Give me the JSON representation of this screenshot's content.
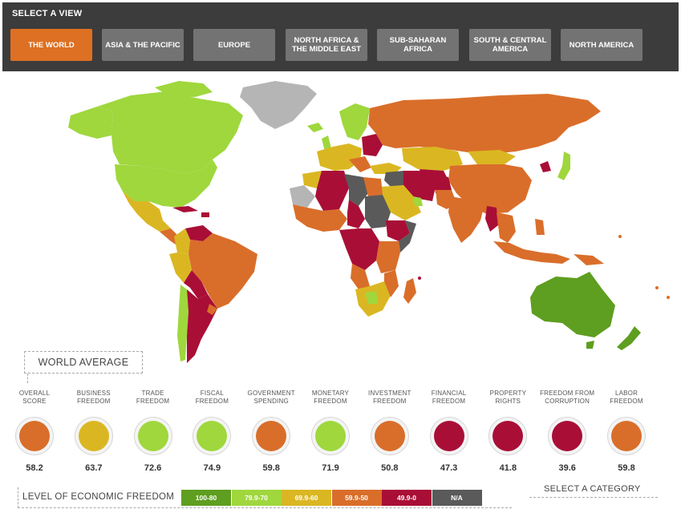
{
  "header": {
    "title": "SELECT A VIEW",
    "tabs": [
      {
        "label": "THE WORLD",
        "active": true
      },
      {
        "label": "ASIA & THE PACIFIC",
        "active": false
      },
      {
        "label": "EUROPE",
        "active": false
      },
      {
        "label": "NORTH AFRICA &\nTHE MIDDLE EAST",
        "active": false
      },
      {
        "label": "SUB-SAHARAN\nAFRICA",
        "active": false
      },
      {
        "label": "SOUTH & CENTRAL\nAMERICA",
        "active": false
      },
      {
        "label": "NORTH AMERICA",
        "active": false
      }
    ]
  },
  "colors": {
    "free": "#5e9e20",
    "mostly_free": "#9fd73d",
    "moderately_free": "#dab722",
    "mostly_unfree": "#d96e2a",
    "repressed": "#a90e36",
    "na": "#5a5a5a",
    "no_data": "#b5b5b5",
    "accent": "#dd7022"
  },
  "world_average": {
    "title": "WORLD AVERAGE",
    "categories": [
      {
        "label": "OVERALL\nSCORE",
        "score": "58.2",
        "color": "#d96e2a"
      },
      {
        "label": "BUSINESS\nFREEDOM",
        "score": "63.7",
        "color": "#dab722"
      },
      {
        "label": "TRADE\nFREEDOM",
        "score": "72.6",
        "color": "#9fd73d"
      },
      {
        "label": "FISCAL\nFREEDOM",
        "score": "74.9",
        "color": "#9fd73d"
      },
      {
        "label": "GOVERNMENT\nSPENDING",
        "score": "59.8",
        "color": "#d96e2a"
      },
      {
        "label": "MONETARY\nFREEDOM",
        "score": "71.9",
        "color": "#9fd73d"
      },
      {
        "label": "INVESTMENT\nFREEDOM",
        "score": "50.8",
        "color": "#d96e2a"
      },
      {
        "label": "FINANCIAL\nFREEDOM",
        "score": "47.3",
        "color": "#a90e36"
      },
      {
        "label": "PROPERTY\nRIGHTS",
        "score": "41.8",
        "color": "#a90e36"
      },
      {
        "label": "FREEDOM FROM\nCORRUPTION",
        "score": "39.6",
        "color": "#a90e36"
      },
      {
        "label": "LABOR\nFREEDOM",
        "score": "59.8",
        "color": "#d96e2a"
      }
    ]
  },
  "legend": {
    "title": "LEVEL OF ECONOMIC FREEDOM",
    "items": [
      {
        "label": "100-80",
        "color": "#5e9e20"
      },
      {
        "label": "79.9-70",
        "color": "#9fd73d"
      },
      {
        "label": "69.9-60",
        "color": "#dab722"
      },
      {
        "label": "59.9-50",
        "color": "#d96e2a"
      },
      {
        "label": "49.9-0",
        "color": "#a90e36"
      },
      {
        "label": "N/A",
        "color": "#5a5a5a"
      }
    ]
  },
  "select_category": "SELECT A CATEGORY"
}
